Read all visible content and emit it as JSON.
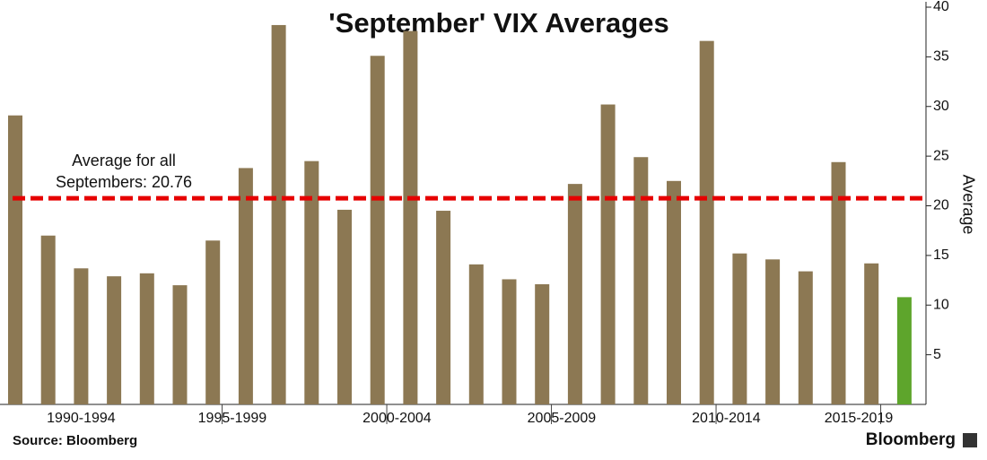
{
  "chart_data": {
    "type": "bar",
    "title": "'September' VIX Averages",
    "y_label": "Average",
    "source": "Source: Bloomberg",
    "brand": "Bloomberg",
    "categories": [
      null,
      null,
      null,
      null,
      null,
      null,
      null,
      null,
      null,
      null,
      null,
      null,
      null,
      null,
      null,
      null,
      null,
      null,
      null,
      null,
      null,
      null,
      null,
      null,
      null,
      null,
      null,
      null
    ],
    "x_groups": [
      "1990-1994",
      "1995-1999",
      "2000-2004",
      "2005-2009",
      "2010-2014",
      "2015-2019"
    ],
    "values": [
      29.1,
      17.0,
      13.7,
      12.9,
      13.2,
      12.0,
      16.5,
      23.8,
      38.2,
      24.5,
      19.6,
      35.1,
      37.6,
      19.5,
      14.1,
      12.6,
      12.1,
      22.2,
      30.2,
      24.9,
      22.5,
      36.6,
      15.2,
      14.6,
      13.4,
      24.4,
      14.2,
      10.8
    ],
    "colors": [
      "#8c7853",
      "#8c7853",
      "#8c7853",
      "#8c7853",
      "#8c7853",
      "#8c7853",
      "#8c7853",
      "#8c7853",
      "#8c7853",
      "#8c7853",
      "#8c7853",
      "#8c7853",
      "#8c7853",
      "#8c7853",
      "#8c7853",
      "#8c7853",
      "#8c7853",
      "#8c7853",
      "#8c7853",
      "#8c7853",
      "#8c7853",
      "#8c7853",
      "#8c7853",
      "#8c7853",
      "#8c7853",
      "#8c7853",
      "#8c7853",
      "#5ea52c"
    ],
    "reference_line": {
      "value": 20.76,
      "label_lines": [
        "Average for all",
        "Septembers: 20.76"
      ],
      "color": "#e60000"
    },
    "ylim": [
      0,
      40
    ],
    "yticks": [
      5,
      10,
      15,
      20,
      25,
      30,
      35,
      40
    ],
    "y_axis_side": "right"
  }
}
